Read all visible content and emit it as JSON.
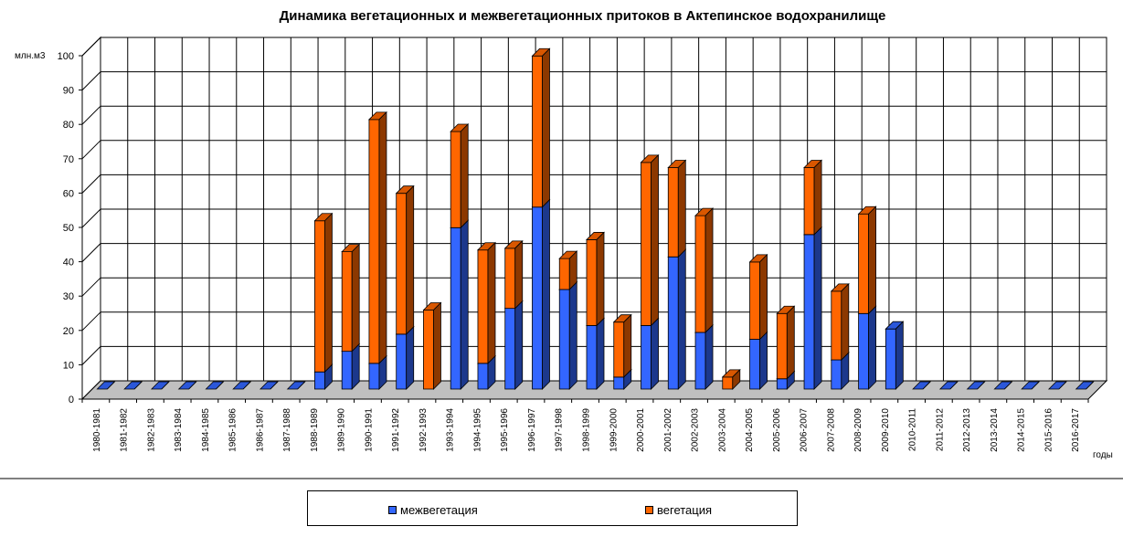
{
  "chart_data": {
    "type": "bar",
    "stacked": true,
    "three_d": true,
    "title": "Динамика вегетационных и межвегетационных притоков в Актепинское водохранилище",
    "ylabel": "млн.м3",
    "xlabel": "годы",
    "ylim": [
      0,
      100
    ],
    "yticks": [
      0,
      10,
      20,
      30,
      40,
      50,
      60,
      70,
      80,
      90,
      100
    ],
    "grid": true,
    "legend_position": "bottom",
    "categories": [
      "1980-1981",
      "1981-1982",
      "1982-1983",
      "1983-1984",
      "1984-1985",
      "1985-1986",
      "1986-1987",
      "1987-1988",
      "1988-1989",
      "1989-1990",
      "1990-1991",
      "1991-1992",
      "1992-1993",
      "1993-1994",
      "1994-1995",
      "1995-1996",
      "1996-1997",
      "1997-1998",
      "1998-1999",
      "1999-2000",
      "2000-2001",
      "2001-2002",
      "2002-2003",
      "2003-2004",
      "2004-2005",
      "2005-2006",
      "2006-2007",
      "2007-2008",
      "2008-2009",
      "2009-2010",
      "2010-2011",
      "2011-2012",
      "2012-2013",
      "2013-2014",
      "2014-2015",
      "2015-2016",
      "2016-2017"
    ],
    "series": [
      {
        "name": "межвегетация",
        "color": "#3366ff",
        "values": [
          0,
          0,
          0,
          0,
          0,
          0,
          0,
          0,
          5,
          11,
          7.5,
          16,
          0,
          47,
          7.5,
          23.5,
          53,
          29,
          18.5,
          3.5,
          18.5,
          38.5,
          16.5,
          0,
          14.5,
          3,
          45,
          8.5,
          22,
          17.5,
          0,
          0,
          0,
          0,
          0,
          0,
          0
        ]
      },
      {
        "name": "вегетация",
        "color": "#ff6600",
        "values": [
          0,
          0,
          0,
          0,
          0,
          0,
          0,
          0,
          44,
          29,
          71,
          41,
          23,
          28,
          33,
          17.5,
          44,
          9,
          25,
          16,
          47.5,
          26,
          34,
          3.5,
          22.5,
          19,
          19.5,
          20,
          29,
          0,
          0,
          0,
          0,
          0,
          0,
          0,
          0
        ]
      }
    ]
  }
}
